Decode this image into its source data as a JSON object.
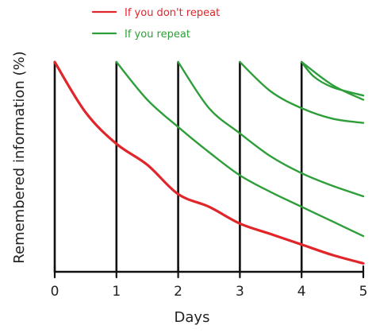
{
  "chart_data": {
    "type": "line",
    "xlabel": "Days",
    "ylabel": "Remembered information (%)",
    "xlim": [
      0,
      5
    ],
    "ylim": [
      0,
      100
    ],
    "x_ticks": [
      "0",
      "1",
      "2",
      "3",
      "4",
      "5"
    ],
    "grid": false,
    "legend_position": "top-left",
    "review_days": [
      0,
      1,
      2,
      3,
      4
    ],
    "series": [
      {
        "name": "If you don't repeat",
        "color": "#e0262b",
        "points": [
          [
            0,
            100
          ],
          [
            0.5,
            76
          ],
          [
            1,
            61
          ],
          [
            1.5,
            51
          ],
          [
            2,
            37
          ],
          [
            2.5,
            31
          ],
          [
            3,
            23
          ],
          [
            3.5,
            18
          ],
          [
            4,
            13
          ],
          [
            4.5,
            8
          ],
          [
            5,
            4
          ]
        ]
      },
      {
        "name": "If you repeat",
        "color": "#2e9e3a",
        "review_curves": [
          {
            "start": 1,
            "points": [
              [
                1,
                100
              ],
              [
                1.5,
                82
              ],
              [
                2,
                69
              ],
              [
                2.5,
                57
              ],
              [
                3,
                46
              ],
              [
                3.5,
                38
              ],
              [
                4,
                31
              ],
              [
                4.5,
                24
              ],
              [
                5,
                17
              ]
            ]
          },
          {
            "start": 2,
            "points": [
              [
                2,
                100
              ],
              [
                2.5,
                78
              ],
              [
                3,
                66
              ],
              [
                3.5,
                55
              ],
              [
                4,
                47
              ],
              [
                4.5,
                41
              ],
              [
                5,
                36
              ]
            ]
          },
          {
            "start": 3,
            "points": [
              [
                3,
                100
              ],
              [
                3.5,
                86
              ],
              [
                4,
                78
              ],
              [
                4.5,
                73
              ],
              [
                5,
                71
              ]
            ]
          },
          {
            "start": 4,
            "points": [
              [
                4,
                100
              ],
              [
                4.5,
                89
              ],
              [
                5,
                82
              ]
            ]
          },
          {
            "start": 4,
            "points": [
              [
                4,
                100
              ],
              [
                4.2,
                93
              ],
              [
                4.5,
                88
              ],
              [
                5,
                84
              ]
            ]
          }
        ]
      }
    ]
  }
}
